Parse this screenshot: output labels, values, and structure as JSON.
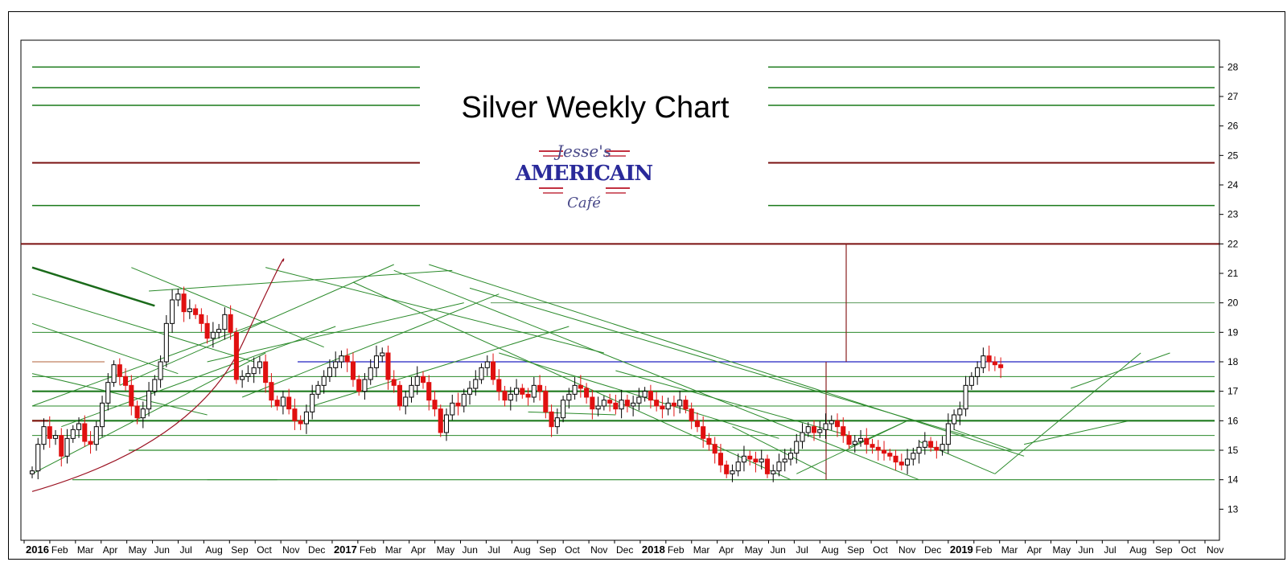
{
  "chart_data": {
    "type": "candlestick",
    "title": "Silver Weekly Chart",
    "logo": {
      "line1": "Jesse's",
      "line2": "AMERICAIN",
      "line3": "Café"
    },
    "ylim": [
      12,
      28.8
    ],
    "y_ticks": [
      13,
      14,
      15,
      16,
      17,
      18,
      19,
      20,
      21,
      22,
      23,
      24,
      25,
      26,
      27,
      28
    ],
    "x_start": "2016-01-01",
    "x_labels": [
      "2016",
      "Feb",
      "Mar",
      "Apr",
      "May",
      "Jun",
      "Jul",
      "Aug",
      "Sep",
      "Oct",
      "Nov",
      "Dec",
      "2017",
      "Feb",
      "Mar",
      "Apr",
      "May",
      "Jun",
      "Jul",
      "Aug",
      "Sep",
      "Oct",
      "Nov",
      "Dec",
      "2018",
      "Feb",
      "Mar",
      "Apr",
      "May",
      "Jun",
      "Jul",
      "Aug",
      "Sep",
      "Oct",
      "Nov",
      "Dec",
      "2019",
      "Feb",
      "Mar",
      "Apr",
      "May",
      "Jun",
      "Jul",
      "Aug",
      "Sep",
      "Oct",
      "Nov"
    ],
    "weekly_closes": [
      14.3,
      15.2,
      15.8,
      15.4,
      15.5,
      14.8,
      15.4,
      15.7,
      15.9,
      15.3,
      15.2,
      15.8,
      16.6,
      17.3,
      17.9,
      17.5,
      17.2,
      16.5,
      16.1,
      16.4,
      17.0,
      17.4,
      18.0,
      19.3,
      20.1,
      20.3,
      19.7,
      19.8,
      19.6,
      19.3,
      18.8,
      19.0,
      19.1,
      19.6,
      19.0,
      17.4,
      17.5,
      17.6,
      17.8,
      18.0,
      17.3,
      16.7,
      16.5,
      16.8,
      16.4,
      16.0,
      15.9,
      16.3,
      16.9,
      17.2,
      17.5,
      17.8,
      18.0,
      18.2,
      18.0,
      17.4,
      17.0,
      17.4,
      17.8,
      18.2,
      18.3,
      17.4,
      17.2,
      16.5,
      16.8,
      17.2,
      17.5,
      17.3,
      16.7,
      16.4,
      15.6,
      16.2,
      16.6,
      16.5,
      16.9,
      17.1,
      17.4,
      17.8,
      18.0,
      17.4,
      17.0,
      16.7,
      16.9,
      17.1,
      16.9,
      16.8,
      17.2,
      17.0,
      16.3,
      15.8,
      16.1,
      16.7,
      16.9,
      17.2,
      17.1,
      16.8,
      16.4,
      16.5,
      16.7,
      16.6,
      16.4,
      16.7,
      16.5,
      16.6,
      16.8,
      17.0,
      16.7,
      16.5,
      16.4,
      16.6,
      16.5,
      16.7,
      16.4,
      16.0,
      15.8,
      15.4,
      15.2,
      14.9,
      14.5,
      14.2,
      14.3,
      14.6,
      14.8,
      14.7,
      14.6,
      14.7,
      14.2,
      14.3,
      14.6,
      14.7,
      14.9,
      15.3,
      15.6,
      15.8,
      15.6,
      15.7,
      15.9,
      16.0,
      15.8,
      15.5,
      15.2,
      15.3,
      15.4,
      15.2,
      15.1,
      15.0,
      14.9,
      14.8,
      14.6,
      14.5,
      14.7,
      14.9,
      15.1,
      15.3,
      15.1,
      15.0,
      15.2,
      15.9,
      16.2,
      16.4,
      17.2,
      17.5,
      17.8,
      18.2,
      18.0,
      17.9,
      17.8
    ]
  }
}
